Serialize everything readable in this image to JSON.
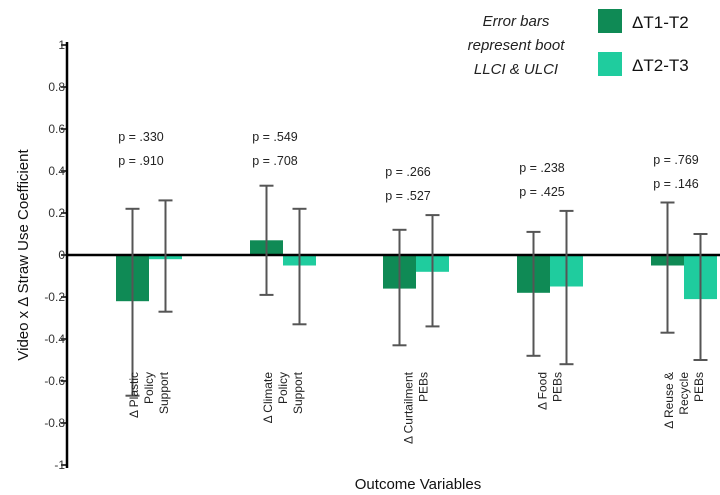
{
  "chart_data": {
    "type": "bar",
    "xlabel": "Outcome Variables",
    "ylabel": "Video x Δ Straw Use Coefficient",
    "ylim": [
      -1,
      1
    ],
    "yticks": [
      "1",
      "0.8",
      "0.6",
      "0.4",
      "0.2",
      "0",
      "-0.2",
      "-0.4",
      "-0.6",
      "-0.8",
      "-1"
    ],
    "categories": [
      [
        "Δ Plastic",
        "Policy",
        "Support"
      ],
      [
        "Δ Climate",
        "Policy",
        "Support"
      ],
      [
        "Δ Curtailment",
        "PEBs"
      ],
      [
        "Δ Food",
        "PEBs"
      ],
      [
        "Δ Reuse &",
        "Recycle",
        "PEBs"
      ]
    ],
    "series": [
      {
        "name": "ΔT1-T2",
        "color": "#0f8a55",
        "values": [
          -0.22,
          0.07,
          -0.16,
          -0.18,
          -0.05
        ],
        "ci_low": [
          -0.67,
          -0.19,
          -0.43,
          -0.48,
          -0.37
        ],
        "ci_high": [
          0.22,
          0.33,
          0.12,
          0.11,
          0.25
        ],
        "p_labels": [
          "p = .330",
          "p = .549",
          "p = .266",
          "p = .238",
          "p = .769"
        ]
      },
      {
        "name": "ΔT2-T3",
        "color": "#1fcc9e",
        "values": [
          -0.02,
          -0.05,
          -0.08,
          -0.15,
          -0.21
        ],
        "ci_low": [
          -0.27,
          -0.33,
          -0.34,
          -0.52,
          -0.5
        ],
        "ci_high": [
          0.26,
          0.22,
          0.19,
          0.21,
          0.1
        ],
        "p_labels": [
          "p = .910",
          "p = .708",
          "p = .527",
          "p = .425",
          "p = .146"
        ]
      }
    ],
    "note": [
      "Error bars",
      "represent boot",
      "LLCI & ULCI"
    ],
    "legend_position": "top-right"
  }
}
